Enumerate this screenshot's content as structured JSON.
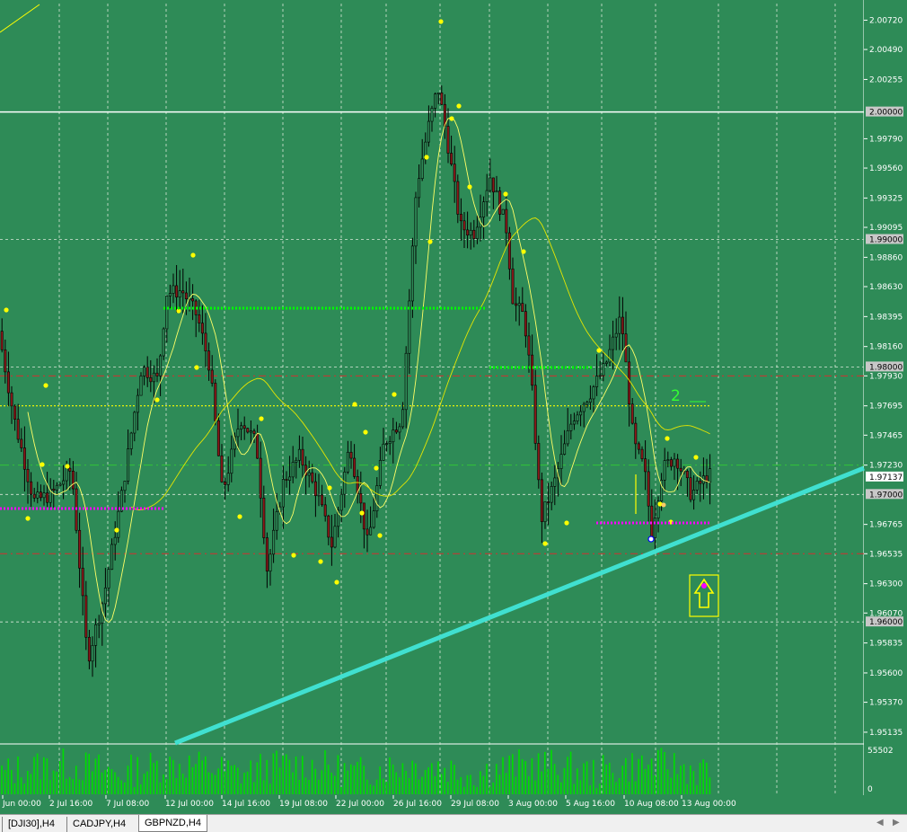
{
  "colors": {
    "background": "#2e8b57",
    "grid": "#d8e8d8",
    "bull_body": "#2e8b57",
    "bear_body": "#8b1a1a",
    "wick": "#000000",
    "trendline": "#40e0d0",
    "level_line": "#ffffff",
    "red_dash": "#d23030",
    "yellow_dot": "#ffff00",
    "green_dot": "#00ff00",
    "magenta_dot": "#ff00ff",
    "volume": "#00dd00"
  },
  "chart_data": {
    "type": "candlestick",
    "symbol": "GBPNZD",
    "timeframe": "H4",
    "ylim": [
      1.9505,
      2.0085
    ],
    "current_price": 1.97137,
    "y_ticks": [
      "2.00720",
      "2.00490",
      "2.00255",
      "1.99790",
      "1.99560",
      "1.99325",
      "1.99095",
      "1.98860",
      "1.98630",
      "1.98395",
      "1.98160",
      "1.97930",
      "1.97695",
      "1.97465",
      "1.97230",
      "1.96765",
      "1.96535",
      "1.96300",
      "1.96070",
      "1.95835",
      "1.95600",
      "1.95370",
      "1.95135"
    ],
    "level_labels": [
      "2.00000",
      "1.99000",
      "1.98000",
      "1.97000",
      "1.96000"
    ],
    "x_labels": [
      "Jun 00:00",
      "2 Jul 16:00",
      "7 Jul 08:00",
      "12 Jul 00:00",
      "14 Jul 16:00",
      "19 Jul 08:00",
      "22 Jul 00:00",
      "26 Jul 16:00",
      "29 Jul 08:00",
      "3 Aug 00:00",
      "5 Aug 16:00",
      "10 Aug 08:00",
      "13 Aug 00:00"
    ],
    "price_path": [
      [
        0,
        1.9832
      ],
      [
        18,
        1.976
      ],
      [
        40,
        1.9695
      ],
      [
        60,
        1.97
      ],
      [
        82,
        1.972
      ],
      [
        100,
        1.957
      ],
      [
        118,
        1.962
      ],
      [
        138,
        1.97
      ],
      [
        160,
        1.98
      ],
      [
        178,
        1.979
      ],
      [
        188,
        1.9858
      ],
      [
        205,
        1.986
      ],
      [
        222,
        1.984
      ],
      [
        236,
        1.98
      ],
      [
        250,
        1.97
      ],
      [
        270,
        1.976
      ],
      [
        288,
        1.974
      ],
      [
        300,
        1.964
      ],
      [
        318,
        1.971
      ],
      [
        336,
        1.973
      ],
      [
        356,
        1.97
      ],
      [
        372,
        1.966
      ],
      [
        392,
        1.974
      ],
      [
        412,
        1.966
      ],
      [
        430,
        1.974
      ],
      [
        450,
        1.976
      ],
      [
        466,
        1.994
      ],
      [
        480,
        1.999
      ],
      [
        490,
        2.002
      ],
      [
        500,
        1.998
      ],
      [
        515,
        1.991
      ],
      [
        530,
        1.9905
      ],
      [
        548,
        1.995
      ],
      [
        566,
        1.991
      ],
      [
        574,
        1.985
      ],
      [
        586,
        1.984
      ],
      [
        594,
        1.979
      ],
      [
        605,
        1.968
      ],
      [
        620,
        1.971
      ],
      [
        640,
        1.976
      ],
      [
        660,
        1.978
      ],
      [
        676,
        1.98
      ],
      [
        694,
        1.984
      ],
      [
        708,
        1.974
      ],
      [
        720,
        1.972
      ],
      [
        728,
        1.967
      ],
      [
        740,
        1.972
      ],
      [
        755,
        1.973
      ],
      [
        772,
        1.97
      ],
      [
        790,
        1.9715
      ]
    ],
    "volume_max": 55502,
    "volume_ticks": [
      "55502",
      "0"
    ],
    "annotations": [
      "2"
    ],
    "indicators": [
      "moving-averages",
      "fractals",
      "trendline",
      "support-resistance-levels",
      "buy-arrow-signal"
    ]
  },
  "tabs": [
    {
      "label": "[DJI30],H4",
      "active": false
    },
    {
      "label": "CADJPY,H4",
      "active": false
    },
    {
      "label": "GBPNZD,H4",
      "active": true
    }
  ]
}
